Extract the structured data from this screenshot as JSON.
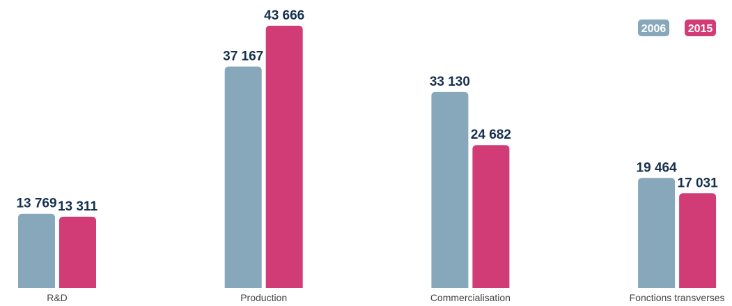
{
  "chart_data": {
    "type": "bar",
    "categories": [
      "R&D",
      "Production",
      "Commercialisation",
      "Fonctions transverses"
    ],
    "series": [
      {
        "name": "2006",
        "color": "#87a7ba",
        "values": [
          13769,
          37167,
          33130,
          19464
        ],
        "value_labels": [
          "13 769",
          "37 167",
          "33 130",
          "19 464"
        ]
      },
      {
        "name": "2015",
        "color": "#d23c76",
        "values": [
          13311,
          43666,
          24682,
          17031
        ],
        "value_labels": [
          "13 311",
          "43 666",
          "24 682",
          "17 031"
        ]
      }
    ],
    "legend": "top-right"
  }
}
